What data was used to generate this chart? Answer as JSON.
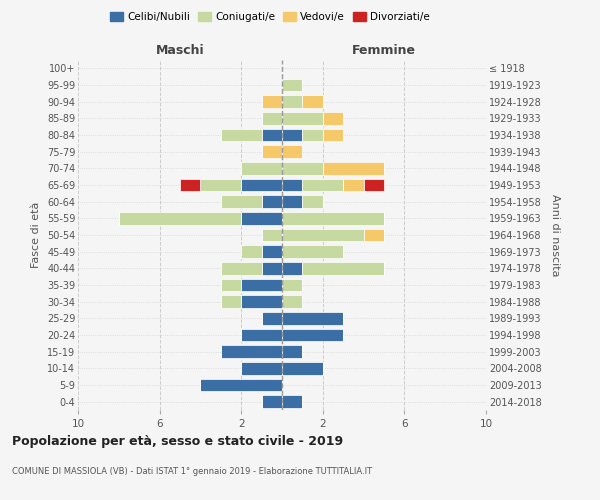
{
  "age_groups": [
    "0-4",
    "5-9",
    "10-14",
    "15-19",
    "20-24",
    "25-29",
    "30-34",
    "35-39",
    "40-44",
    "45-49",
    "50-54",
    "55-59",
    "60-64",
    "65-69",
    "70-74",
    "75-79",
    "80-84",
    "85-89",
    "90-94",
    "95-99",
    "100+"
  ],
  "birth_years": [
    "2014-2018",
    "2009-2013",
    "2004-2008",
    "1999-2003",
    "1994-1998",
    "1989-1993",
    "1984-1988",
    "1979-1983",
    "1974-1978",
    "1969-1973",
    "1964-1968",
    "1959-1963",
    "1954-1958",
    "1949-1953",
    "1944-1948",
    "1939-1943",
    "1934-1938",
    "1929-1933",
    "1924-1928",
    "1919-1923",
    "≤ 1918"
  ],
  "colors": {
    "celibi": "#3a6ea5",
    "coniugati": "#c5d9a0",
    "vedovi": "#f5c96a",
    "divorziati": "#cc2222"
  },
  "maschi": {
    "celibi": [
      1,
      4,
      2,
      3,
      2,
      1,
      2,
      2,
      1,
      1,
      0,
      2,
      1,
      2,
      0,
      0,
      1,
      0,
      0,
      0,
      0
    ],
    "coniugati": [
      0,
      0,
      0,
      0,
      0,
      0,
      1,
      1,
      2,
      1,
      1,
      6,
      2,
      2,
      2,
      0,
      2,
      1,
      0,
      0,
      0
    ],
    "vedovi": [
      0,
      0,
      0,
      0,
      0,
      0,
      0,
      0,
      0,
      0,
      0,
      0,
      0,
      0,
      0,
      1,
      0,
      0,
      1,
      0,
      0
    ],
    "divorziati": [
      0,
      0,
      0,
      0,
      0,
      0,
      0,
      0,
      0,
      0,
      0,
      0,
      0,
      1,
      0,
      0,
      0,
      0,
      0,
      0,
      0
    ]
  },
  "femmine": {
    "celibi": [
      1,
      0,
      2,
      1,
      3,
      3,
      0,
      0,
      1,
      0,
      0,
      0,
      1,
      1,
      0,
      0,
      1,
      0,
      0,
      0,
      0
    ],
    "coniugati": [
      0,
      0,
      0,
      0,
      0,
      0,
      1,
      1,
      4,
      3,
      4,
      5,
      1,
      2,
      2,
      0,
      1,
      2,
      1,
      1,
      0
    ],
    "vedovi": [
      0,
      0,
      0,
      0,
      0,
      0,
      0,
      0,
      0,
      0,
      1,
      0,
      0,
      1,
      3,
      1,
      1,
      1,
      1,
      0,
      0
    ],
    "divorziati": [
      0,
      0,
      0,
      0,
      0,
      0,
      0,
      0,
      0,
      0,
      0,
      0,
      0,
      1,
      0,
      0,
      0,
      0,
      0,
      0,
      0
    ]
  },
  "xlim": 10,
  "title": "Popolazione per età, sesso e stato civile - 2019",
  "subtitle": "COMUNE DI MASSIOLA (VB) - Dati ISTAT 1° gennaio 2019 - Elaborazione TUTTITALIA.IT",
  "ylabel": "Fasce di età",
  "y2label": "Anni di nascita",
  "xlabel_left": "Maschi",
  "xlabel_right": "Femmine",
  "legend_labels": [
    "Celibi/Nubili",
    "Coniugati/e",
    "Vedovi/e",
    "Divorziati/e"
  ],
  "bg_color": "#f5f5f5",
  "grid_color": "#cccccc"
}
